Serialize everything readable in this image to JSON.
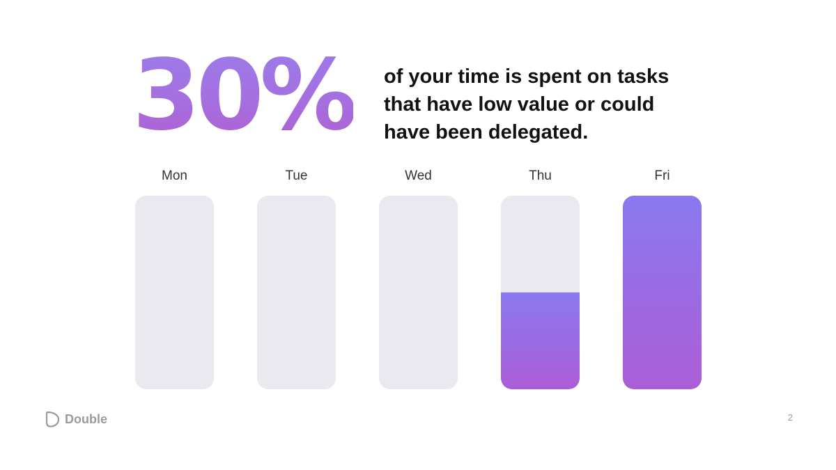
{
  "stat": "30%",
  "headline": "of your time is spent on tasks that have low value or could have been delegated.",
  "chart_data": {
    "type": "bar",
    "categories": [
      "Mon",
      "Tue",
      "Wed",
      "Thu",
      "Fri"
    ],
    "values": [
      0,
      0,
      0,
      0.5,
      1.0
    ],
    "ylim": [
      0,
      1
    ],
    "grid": false,
    "colors": {
      "track": "#e9e9ef",
      "fill_top": "#8a79ef",
      "fill_bottom": "#ab5dd6"
    }
  },
  "footer": {
    "logo_text": "Double",
    "page_number": "2"
  }
}
